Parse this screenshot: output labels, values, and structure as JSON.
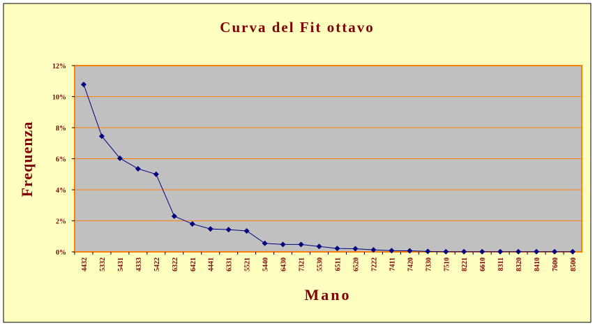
{
  "colors": {
    "background": "#FFFFC0",
    "border": "#000000",
    "plot_area": "#C0C0C0",
    "plot_border": "#FF8000",
    "gridline": "#FF8000",
    "title_text": "#800000",
    "series_line": "#000080",
    "series_marker": "#000080"
  },
  "chart_data": {
    "type": "line",
    "title": "Curva del Fit ottavo",
    "xlabel": "Mano",
    "ylabel": "Frequenza",
    "ylim": [
      0,
      12
    ],
    "y_ticks": [
      0,
      2,
      4,
      6,
      8,
      10,
      12
    ],
    "y_tick_labels": [
      "0%",
      "2%",
      "4%",
      "6%",
      "8%",
      "10%",
      "12%"
    ],
    "grid": true,
    "legend": "none",
    "marker": "diamond",
    "categories": [
      "4432",
      "5332",
      "5431",
      "4333",
      "5422",
      "6322",
      "6421",
      "4441",
      "6331",
      "5521",
      "5440",
      "6430",
      "7321",
      "5530",
      "6511",
      "6520",
      "7222",
      "7411",
      "7420",
      "7330",
      "7510",
      "8221",
      "6610",
      "8311",
      "8320",
      "8410",
      "7600",
      "8500"
    ],
    "series": [
      {
        "values": [
          10.78,
          7.45,
          6.03,
          5.35,
          5.0,
          2.3,
          1.8,
          1.48,
          1.43,
          1.35,
          0.55,
          0.48,
          0.48,
          0.35,
          0.22,
          0.2,
          0.13,
          0.08,
          0.07,
          0.03,
          0.01,
          0.01,
          0.01,
          0.01,
          0.01,
          0.01,
          0.01,
          0.01
        ]
      }
    ]
  }
}
